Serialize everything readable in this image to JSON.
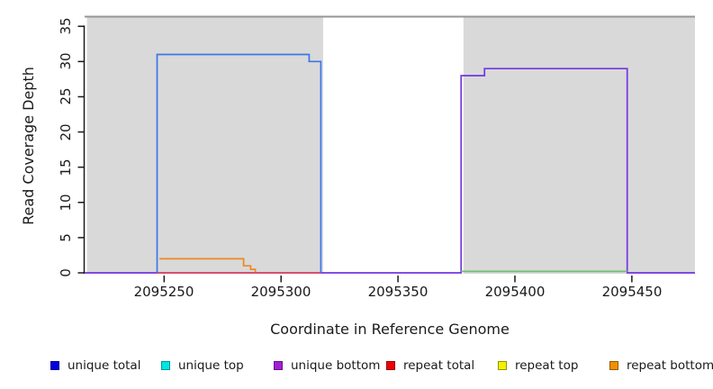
{
  "chart_data": {
    "type": "step-line",
    "title": "",
    "xlabel": "Coordinate in Reference Genome",
    "ylabel": "Read Coverage Depth",
    "x_axis": {
      "range": [
        2095216,
        2095477
      ],
      "ticks": [
        2095250,
        2095300,
        2095350,
        2095400,
        2095450
      ]
    },
    "y_axis": {
      "range": [
        0,
        36.5
      ],
      "ticks": [
        0,
        5,
        10,
        15,
        20,
        25,
        30,
        35
      ]
    },
    "grid": "off",
    "background_regions": [
      {
        "name": "shaded-region-left",
        "x1": 2095217,
        "x2": 2095318,
        "color": "#d9d9d9"
      },
      {
        "name": "shaded-region-right",
        "x1": 2095378,
        "x2": 2095477,
        "color": "#d9d9d9"
      }
    ],
    "frame_top_line": {
      "color": "#969696"
    },
    "series": [
      {
        "name": "unique bottom",
        "color": "#7435e2",
        "points": [
          [
            2095216,
            0
          ],
          [
            2095377,
            0
          ],
          [
            2095377,
            28
          ],
          [
            2095387,
            28
          ],
          [
            2095387,
            29
          ],
          [
            2095448,
            29
          ],
          [
            2095448,
            0
          ],
          [
            2095477,
            0
          ]
        ]
      },
      {
        "name": "repeat total",
        "color": "#de4e5e",
        "points": [
          [
            2095247,
            0
          ],
          [
            2095317,
            0
          ]
        ]
      },
      {
        "name": "unique total",
        "color": "#3c76e8",
        "points": [
          [
            2095247,
            0
          ],
          [
            2095247,
            31
          ],
          [
            2095312,
            31
          ],
          [
            2095312,
            30
          ],
          [
            2095317,
            30
          ],
          [
            2095317,
            0
          ]
        ]
      },
      {
        "name": "repeat bottom",
        "color": "#ee8822",
        "points": [
          [
            2095248,
            2
          ],
          [
            2095284,
            2
          ],
          [
            2095284,
            1
          ],
          [
            2095287,
            1
          ],
          [
            2095287,
            0.5
          ],
          [
            2095289,
            0.5
          ],
          [
            2095289,
            0.1
          ]
        ]
      },
      {
        "name": "unlabeled green",
        "color": "#6fbe6f",
        "points": [
          [
            2095377,
            0.2
          ],
          [
            2095448,
            0.2
          ]
        ]
      }
    ],
    "legend_position": "bottom",
    "legend": [
      {
        "label": "unique total",
        "fill": "#0000e0",
        "border": "#000090"
      },
      {
        "label": "unique top",
        "fill": "#00e5e5",
        "border": "#009595"
      },
      {
        "label": "unique bottom",
        "fill": "#a020d0",
        "border": "#6a0e90"
      },
      {
        "label": "repeat total",
        "fill": "#ee0000",
        "border": "#940000"
      },
      {
        "label": "repeat top",
        "fill": "#f2f200",
        "border": "#949400"
      },
      {
        "label": "repeat bottom",
        "fill": "#f09000",
        "border": "#945800"
      }
    ]
  }
}
